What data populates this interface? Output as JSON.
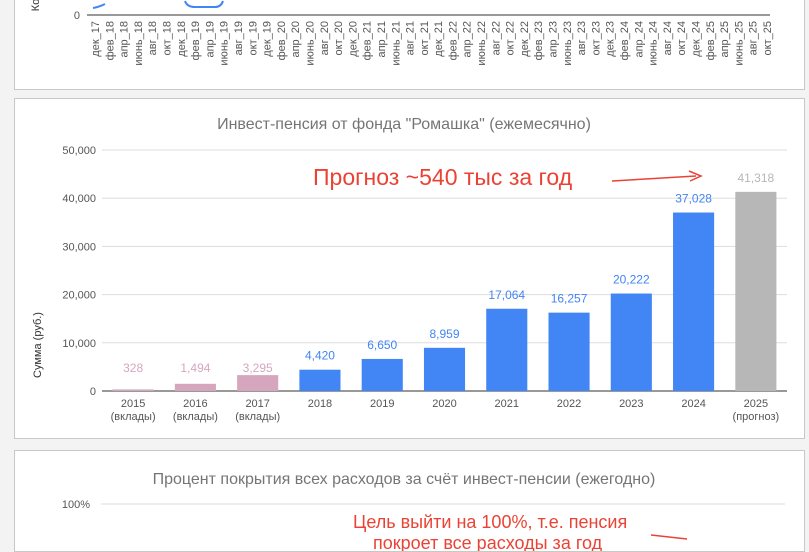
{
  "top_chart": {
    "ylabel_fragment": "Ко",
    "y_zero_label": "0",
    "x_labels": [
      "дек_17",
      "фев_18",
      "апр_18",
      "июнь_18",
      "авг_18",
      "окт_18",
      "дек_18",
      "фев_19",
      "апр_19",
      "июнь_19",
      "авг_19",
      "окт_19",
      "дек_19",
      "фев_20",
      "апр_20",
      "июнь_20",
      "авг_20",
      "окт_20",
      "дек_20",
      "фев_21",
      "апр_21",
      "июнь_21",
      "авг_21",
      "окт_21",
      "дек_21",
      "фев_22",
      "апр_22",
      "июнь_22",
      "авг_22",
      "окт_22",
      "дек_22",
      "фев_23",
      "апр_23",
      "июнь_23",
      "авг_23",
      "окт_23",
      "дек_23",
      "фев_24",
      "апр_24",
      "июнь_24",
      "авг_24",
      "окт_24",
      "дек_24",
      "фев_25",
      "апр_25",
      "июнь_25",
      "авг_25",
      "окт_25"
    ],
    "series_color": "#4285f4"
  },
  "chart_data": {
    "type": "bar",
    "title": "Инвест-пенсия от фонда \"Ромашка\" (ежемесячно)",
    "xlabel": "",
    "ylabel": "Сумма (руб.)",
    "ylim": [
      0,
      50000
    ],
    "yticks": [
      "0",
      "10,000",
      "20,000",
      "30,000",
      "40,000",
      "50,000"
    ],
    "yticks_values": [
      0,
      10000,
      20000,
      30000,
      40000,
      50000
    ],
    "grid": true,
    "categories": [
      {
        "year": "2015",
        "sub": "(вклады)"
      },
      {
        "year": "2016",
        "sub": "(вклады)"
      },
      {
        "year": "2017",
        "sub": "(вклады)"
      },
      {
        "year": "2018",
        "sub": ""
      },
      {
        "year": "2019",
        "sub": ""
      },
      {
        "year": "2020",
        "sub": ""
      },
      {
        "year": "2021",
        "sub": ""
      },
      {
        "year": "2022",
        "sub": ""
      },
      {
        "year": "2023",
        "sub": ""
      },
      {
        "year": "2024",
        "sub": ""
      },
      {
        "year": "2025",
        "sub": "(прогноз)"
      }
    ],
    "values": [
      328,
      1494,
      3295,
      4420,
      6650,
      8959,
      17064,
      16257,
      20222,
      37028,
      41318
    ],
    "value_labels": [
      "328",
      "1,494",
      "3,295",
      "4,420",
      "6,650",
      "8,959",
      "17,064",
      "16,257",
      "20,222",
      "37,028",
      "41,318"
    ],
    "colors": [
      "#d5a6bd",
      "#d5a6bd",
      "#d5a6bd",
      "#4285f4",
      "#4285f4",
      "#4285f4",
      "#4285f4",
      "#4285f4",
      "#4285f4",
      "#4285f4",
      "#b7b7b7"
    ],
    "label_colors": [
      "#d5a6bd",
      "#d5a6bd",
      "#d5a6bd",
      "#4285f4",
      "#4285f4",
      "#4285f4",
      "#4285f4",
      "#4285f4",
      "#4285f4",
      "#4285f4",
      "#b7b7b7"
    ],
    "annotation": "Прогноз ~540 тыс за год",
    "annotation_color": "#ea4335"
  },
  "bottom_chart": {
    "title": "Процент покрытия всех расходов за счёт инвест-пенсии (ежегодно)",
    "y_top_label": "100%",
    "annotation_line1": "Цель выйти на 100%, т.е. пенсия",
    "annotation_line2": "покроет все расходы за год"
  }
}
